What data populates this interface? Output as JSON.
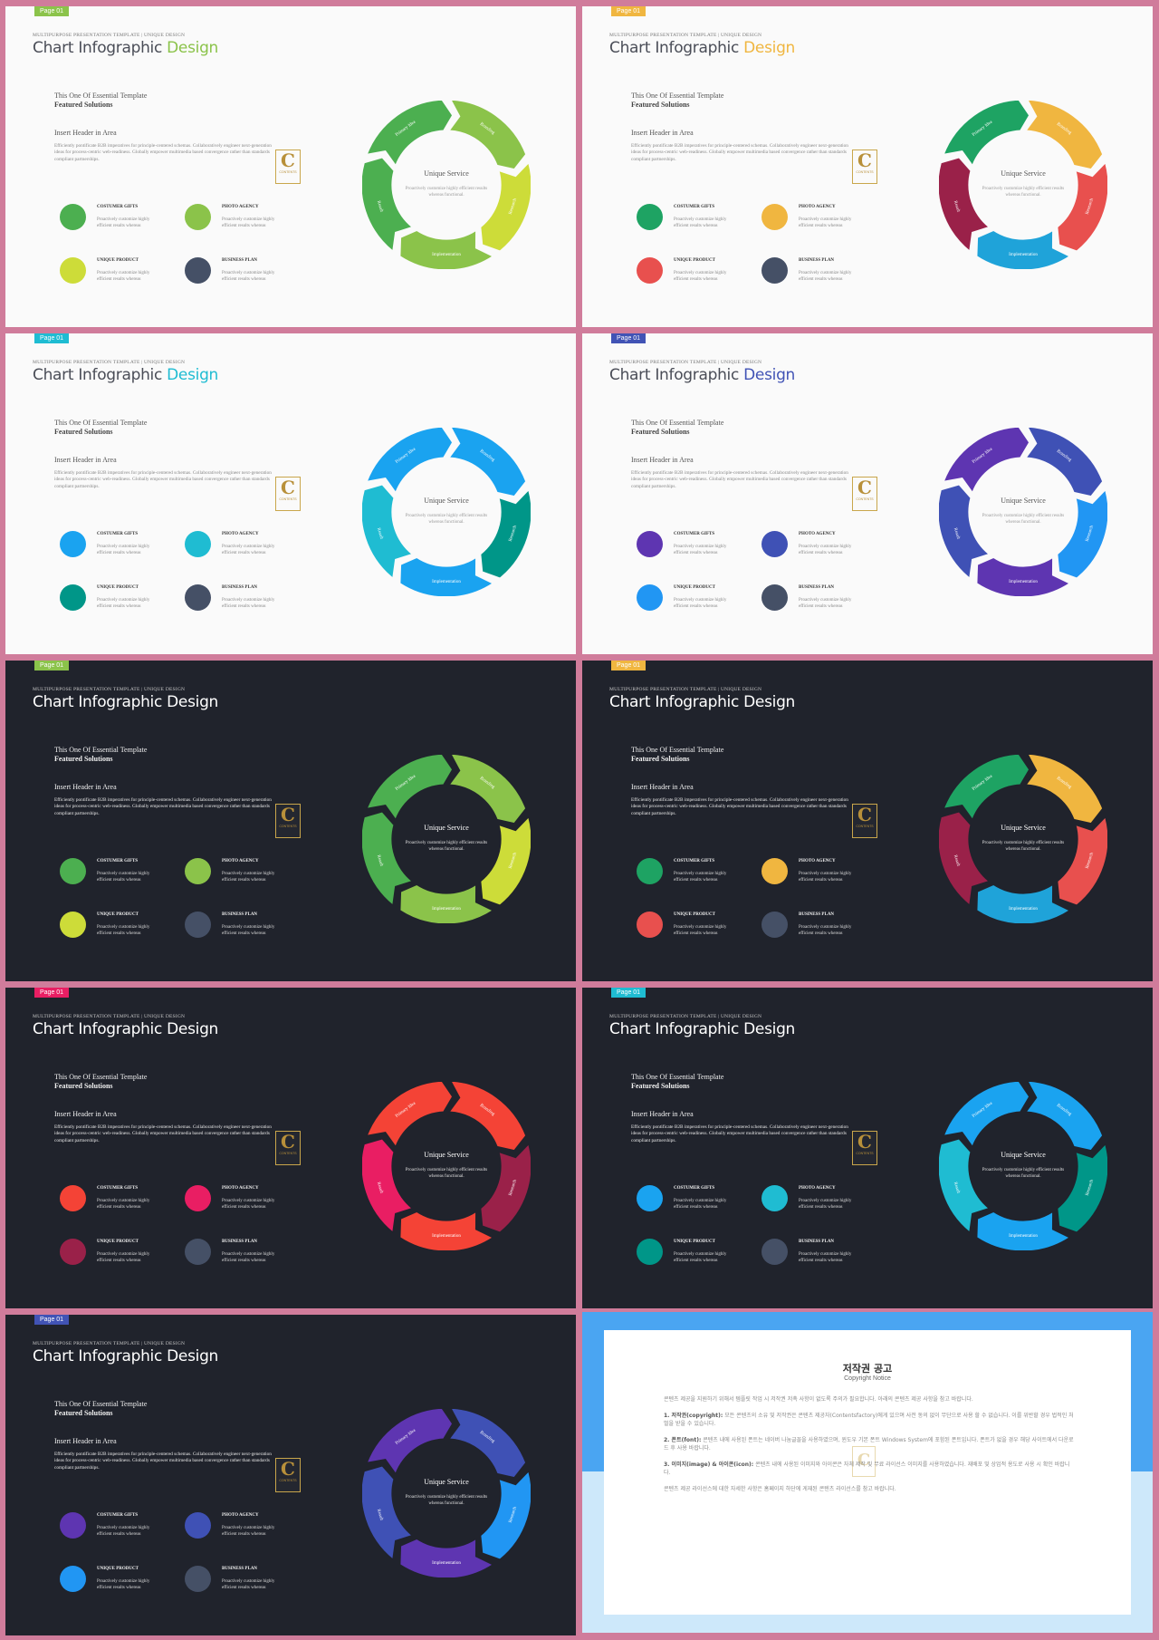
{
  "slide_common": {
    "page_label": "Page 01",
    "kicker": "MULTIPURPOSE PRESENTATION TEMPLATE | UNIQUE DESIGN",
    "title_main": "Chart Infographic ",
    "title_accent": "Design",
    "line1": "This One Of Essential Template",
    "line2": "Featured Solutions",
    "header": "Insert Header in Area",
    "paragraph": "Efficiently pontificate B2B imperatives for principle-centered schemas. Collaboratively engineer next-generation ideas for process-centric web-readiness. Globally empower multimedia based convergence rather than standards compliant partnerships.",
    "logo_letter": "C",
    "logo_text": "CONTENTS",
    "items": [
      {
        "title": "COSTUMER GIFTS",
        "desc": "Proactively customize highly efficient results whereas"
      },
      {
        "title": "PHOTO AGENCY",
        "desc": "Proactively customize highly efficient results whereas"
      },
      {
        "title": "UNIQUE PRODUCT",
        "desc": "Proactively customize highly efficient results whereas"
      },
      {
        "title": "BUSINESS PLAN",
        "desc": "Proactively customize highly efficient results whereas"
      }
    ],
    "center_title": "Unique Service",
    "center_desc": "Proactively customize highly efficient results whereas functional.",
    "ring_labels": [
      "Primary Idea",
      "Branding",
      "Research",
      "Implementation",
      "Result"
    ]
  },
  "slides": [
    {
      "theme": "light",
      "accent": "#8bc34a",
      "segments": [
        "#4caf50",
        "#8bc34a",
        "#cddc39",
        "#8bc34a",
        "#4caf50"
      ],
      "dots": [
        "#4caf50",
        "#8bc34a",
        "#cddc39",
        "#455066"
      ]
    },
    {
      "theme": "light",
      "accent": "#f0b640",
      "segments": [
        "#1ea363",
        "#f0b640",
        "#e8504e",
        "#1fa3d9",
        "#9a2149"
      ],
      "dots": [
        "#1ea363",
        "#f0b640",
        "#e8504e",
        "#455066"
      ]
    },
    {
      "theme": "light",
      "accent": "#1fbcd2",
      "segments": [
        "#1aa3f0",
        "#1aa3f0",
        "#009688",
        "#1aa3f0",
        "#1fbcd2"
      ],
      "dots": [
        "#1aa3f0",
        "#1fbcd2",
        "#009688",
        "#455066"
      ]
    },
    {
      "theme": "light",
      "accent": "#4153b5",
      "segments": [
        "#5e35b1",
        "#3f51b5",
        "#2196f3",
        "#5e35b1",
        "#3f51b5"
      ],
      "dots": [
        "#5e35b1",
        "#3f51b5",
        "#2196f3",
        "#455066"
      ]
    },
    {
      "theme": "dark",
      "accent": "#8bc34a",
      "segments": [
        "#4caf50",
        "#8bc34a",
        "#cddc39",
        "#8bc34a",
        "#4caf50"
      ],
      "dots": [
        "#4caf50",
        "#8bc34a",
        "#cddc39",
        "#455066"
      ]
    },
    {
      "theme": "dark",
      "accent": "#f0b640",
      "segments": [
        "#1ea363",
        "#f0b640",
        "#e8504e",
        "#1fa3d9",
        "#9a2149"
      ],
      "dots": [
        "#1ea363",
        "#f0b640",
        "#e8504e",
        "#455066"
      ]
    },
    {
      "theme": "dark",
      "accent": "#e91e63",
      "segments": [
        "#f44336",
        "#f44336",
        "#9a2149",
        "#f44336",
        "#e91e63"
      ],
      "dots": [
        "#f44336",
        "#e91e63",
        "#9a2149",
        "#455066"
      ]
    },
    {
      "theme": "dark",
      "accent": "#1fbcd2",
      "segments": [
        "#1aa3f0",
        "#1aa3f0",
        "#009688",
        "#1aa3f0",
        "#1fbcd2"
      ],
      "dots": [
        "#1aa3f0",
        "#1fbcd2",
        "#009688",
        "#455066"
      ]
    },
    {
      "theme": "dark",
      "accent": "#4153b5",
      "segments": [
        "#5e35b1",
        "#3f51b5",
        "#2196f3",
        "#5e35b1",
        "#3f51b5"
      ],
      "dots": [
        "#5e35b1",
        "#3f51b5",
        "#2196f3",
        "#455066"
      ]
    }
  ],
  "notice": {
    "title": "저작권 공고",
    "subtitle": "Copyright Notice",
    "intro": "콘텐츠 제공을 지원하기 위해서 템플릿 작업 시 저작권 저촉 사항이 없도록 주의가 필요합니다. 아래의 콘텐츠 제공 사항을 참고 바랍니다.",
    "item1_label": "1. 저작권(copyright):",
    "item1_text": " 모든 콘텐츠의 소유 및 저작권은 콘텐츠 제공자(Contentsfactory)에게 있으며 사전 동의 없이 무단으로 사용 할 수 없습니다. 이를 위반할 경우 법적인 처벌을 받을 수 있습니다.",
    "item2_label": "2. 폰트(font):",
    "item2_text": " 콘텐츠 내에 사용된 폰트는 네이버 나눔글꼴을 사용하였으며, 윈도우 기본 폰트 Windows System에 포함된 폰트입니다. 폰트가 없을 경우 해당 사이트에서 다운로드 후 사용 바랍니다.",
    "item3_label": "3. 이미지(image) & 아이콘(icon):",
    "item3_text": " 콘텐츠 내에 사용된 이미지와 아이콘은 자체 제작 및 무료 라이선스 이미지를 사용하였습니다. 재배포 및 상업적 용도로 사용 시 확인 바랍니다.",
    "outro": "콘텐츠 제공 라이선스에 대한 자세한 사항은 홈페이지 하단에 게재된 콘텐츠 라이선스를 참고 바랍니다.",
    "watermark": "C"
  }
}
